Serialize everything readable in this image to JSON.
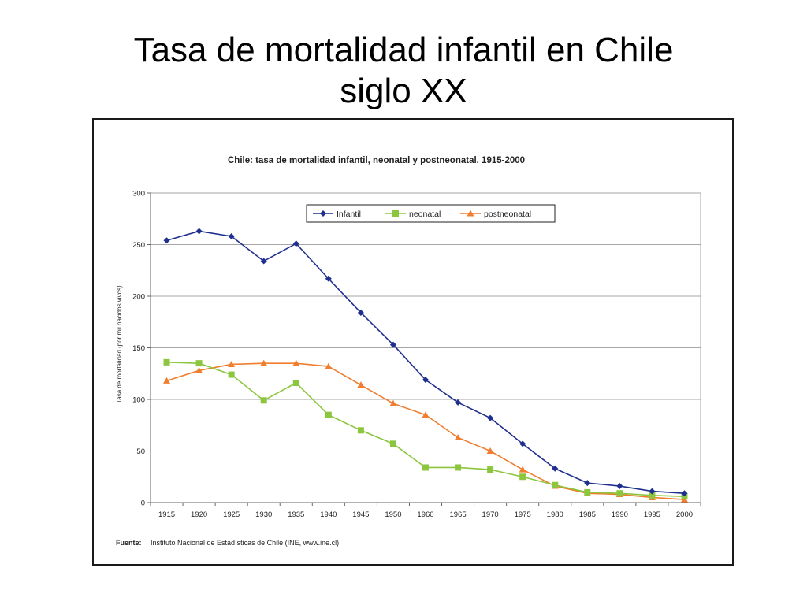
{
  "slide": {
    "title_line1": "Tasa de mortalidad infantil en Chile",
    "title_line2": "siglo XX"
  },
  "chart_data": {
    "type": "line",
    "title": "Chile: tasa de mortalidad infantil, neonatal y postneonatal. 1915-2000",
    "xlabel": "",
    "ylabel": "Tasa de mortalidad (por mil nacidos vivos)",
    "categories": [
      "1915",
      "1920",
      "1925",
      "1930",
      "1935",
      "1940",
      "1945",
      "1950",
      "1960",
      "1965",
      "1970",
      "1975",
      "1980",
      "1985",
      "1990",
      "1995",
      "2000"
    ],
    "ylim": [
      0,
      300
    ],
    "yticks": [
      "0",
      "50",
      "100",
      "150",
      "200",
      "250",
      "300"
    ],
    "grid": true,
    "legend_position": "top-right",
    "series": [
      {
        "name": "Infantil",
        "color": "#1f2f8f",
        "marker": "diamond",
        "values": [
          254,
          263,
          258,
          234,
          251,
          217,
          184,
          153,
          119,
          97,
          82,
          57,
          33,
          19,
          16,
          11,
          9
        ]
      },
      {
        "name": "neonatal",
        "color": "#8cc63e",
        "marker": "square",
        "values": [
          136,
          135,
          124,
          99,
          116,
          85,
          70,
          57,
          34,
          34,
          32,
          25,
          17,
          10,
          9,
          7,
          6
        ]
      },
      {
        "name": "postneonatal",
        "color": "#f07e2e",
        "marker": "triangle",
        "values": [
          118,
          128,
          134,
          135,
          135,
          132,
          114,
          96,
          85,
          63,
          50,
          32,
          16,
          9,
          8,
          5,
          3
        ]
      }
    ],
    "source_label": "Fuente:",
    "source_text": "Instituto Nacional de Estadísticas de Chile (INE, www.ine.cl)"
  }
}
